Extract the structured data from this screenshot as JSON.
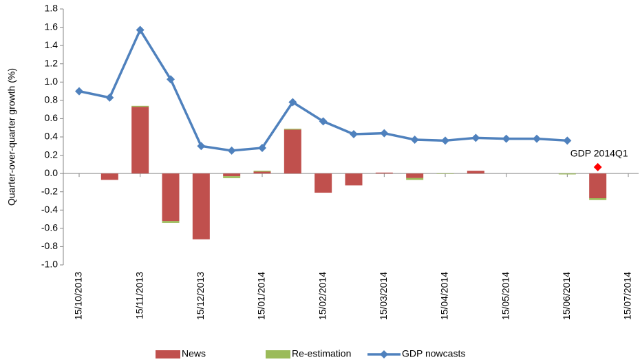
{
  "chart_data": {
    "type": "bar",
    "y_label": "Quarter-over-quarter growth (%)",
    "categories": [
      "15/10/2013",
      null,
      "15/11/2013",
      null,
      "15/12/2013",
      null,
      "15/01/2014",
      null,
      "15/02/2014",
      null,
      "15/03/2014",
      null,
      "15/04/2014",
      null,
      "15/05/2014",
      null,
      "15/06/2014",
      null,
      "15/07/2014"
    ],
    "ylim": [
      -1,
      1.8
    ],
    "yticks": [
      1.8,
      1.6,
      1.4,
      1.2,
      {
        "value": 1,
        "label": "1.0"
      },
      0.8,
      0.6,
      0.4,
      0.2,
      {
        "value": 0,
        "label": "0.0"
      },
      -0.2,
      -0.4,
      -0.6,
      -0.8,
      {
        "value": -1,
        "label": "-1.0"
      }
    ],
    "series": [
      {
        "name": "News",
        "type": "bar",
        "color": "#c0504d",
        "values": [
          null,
          -0.07,
          0.73,
          -0.52,
          -0.72,
          -0.03,
          0.02,
          0.48,
          -0.21,
          -0.13,
          0.01,
          -0.05,
          0,
          0.03,
          0,
          0,
          0,
          -0.27,
          null
        ]
      },
      {
        "name": "Re-estimation",
        "type": "bar",
        "color": "#9bbb59",
        "values": [
          null,
          0,
          0.01,
          -0.02,
          0,
          -0.02,
          0.01,
          0.01,
          0,
          0,
          0,
          -0.02,
          -0.005,
          0,
          0,
          0,
          -0.01,
          -0.02,
          null
        ]
      },
      {
        "name": "GDP nowcasts",
        "type": "line",
        "color": "#4f81bd",
        "values": [
          0.9,
          0.83,
          1.57,
          1.03,
          0.3,
          0.25,
          0.28,
          0.78,
          0.57,
          0.43,
          0.44,
          0.37,
          0.36,
          0.39,
          0.38,
          0.38,
          0.36,
          null,
          null
        ]
      },
      {
        "name": "GDP 2014Q1",
        "type": "point",
        "color": "#ff0000",
        "legend": false,
        "values": [
          null,
          null,
          null,
          null,
          null,
          null,
          null,
          null,
          null,
          null,
          null,
          null,
          null,
          null,
          null,
          null,
          null,
          0.07,
          null
        ]
      }
    ]
  }
}
